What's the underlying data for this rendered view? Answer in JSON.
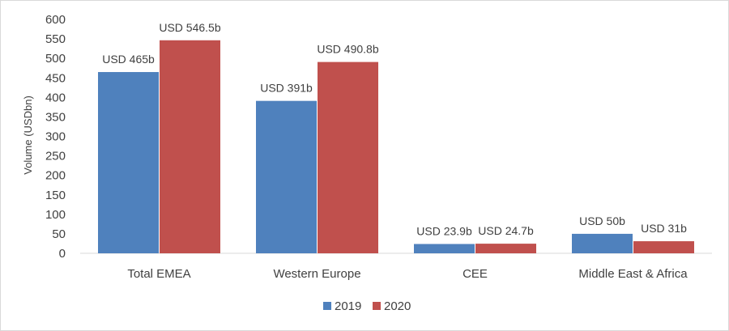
{
  "chart_data": {
    "type": "bar",
    "title": "",
    "xlabel": "",
    "ylabel": "Volume (USDbn)",
    "ylim": [
      0,
      600
    ],
    "yticks": [
      0,
      50,
      100,
      150,
      200,
      250,
      300,
      350,
      400,
      450,
      500,
      550,
      600
    ],
    "grid": false,
    "legend_position": "bottom",
    "categories": [
      "Total EMEA",
      "Western Europe",
      "CEE",
      "Middle East & Africa"
    ],
    "series": [
      {
        "name": "2019",
        "color": "#4f81bd",
        "values": [
          465,
          391,
          23.9,
          50
        ],
        "labels": [
          "USD 465b",
          "USD 391b",
          "USD 23.9b",
          "USD 50b"
        ]
      },
      {
        "name": "2020",
        "color": "#c0504d",
        "values": [
          546.5,
          490.8,
          24.7,
          31
        ],
        "labels": [
          "USD 546.5b",
          "USD 490.8b",
          "USD 24.7b",
          "USD 31b"
        ]
      }
    ]
  }
}
